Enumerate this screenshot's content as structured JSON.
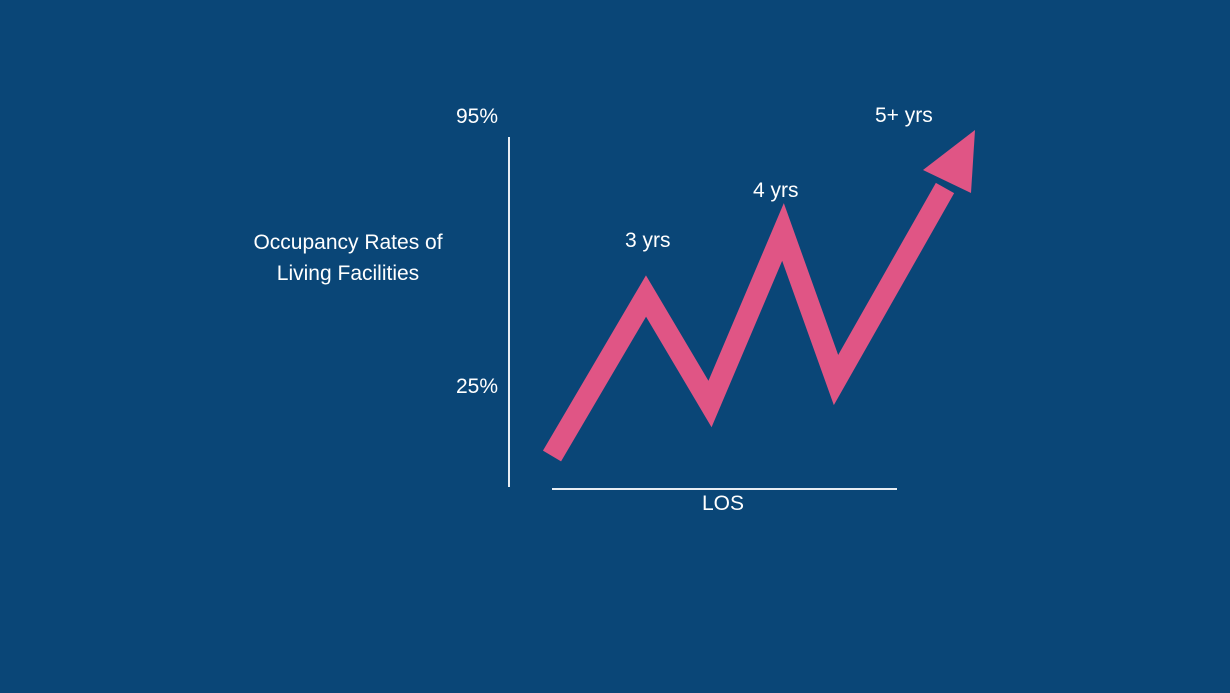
{
  "chart_data": {
    "type": "line",
    "title": "",
    "ylabel_lines": [
      "Occupancy Rates of",
      "Living Facilities"
    ],
    "xlabel": "LOS",
    "y_tick_labels": [
      "95%",
      "25%"
    ],
    "point_labels": [
      "3 yrs",
      "4 yrs",
      "5+ yrs"
    ],
    "grid": false,
    "legend": "none",
    "line_color": "#e05585",
    "axis_color": "#e8edf3",
    "background_color": "#0a4677"
  }
}
